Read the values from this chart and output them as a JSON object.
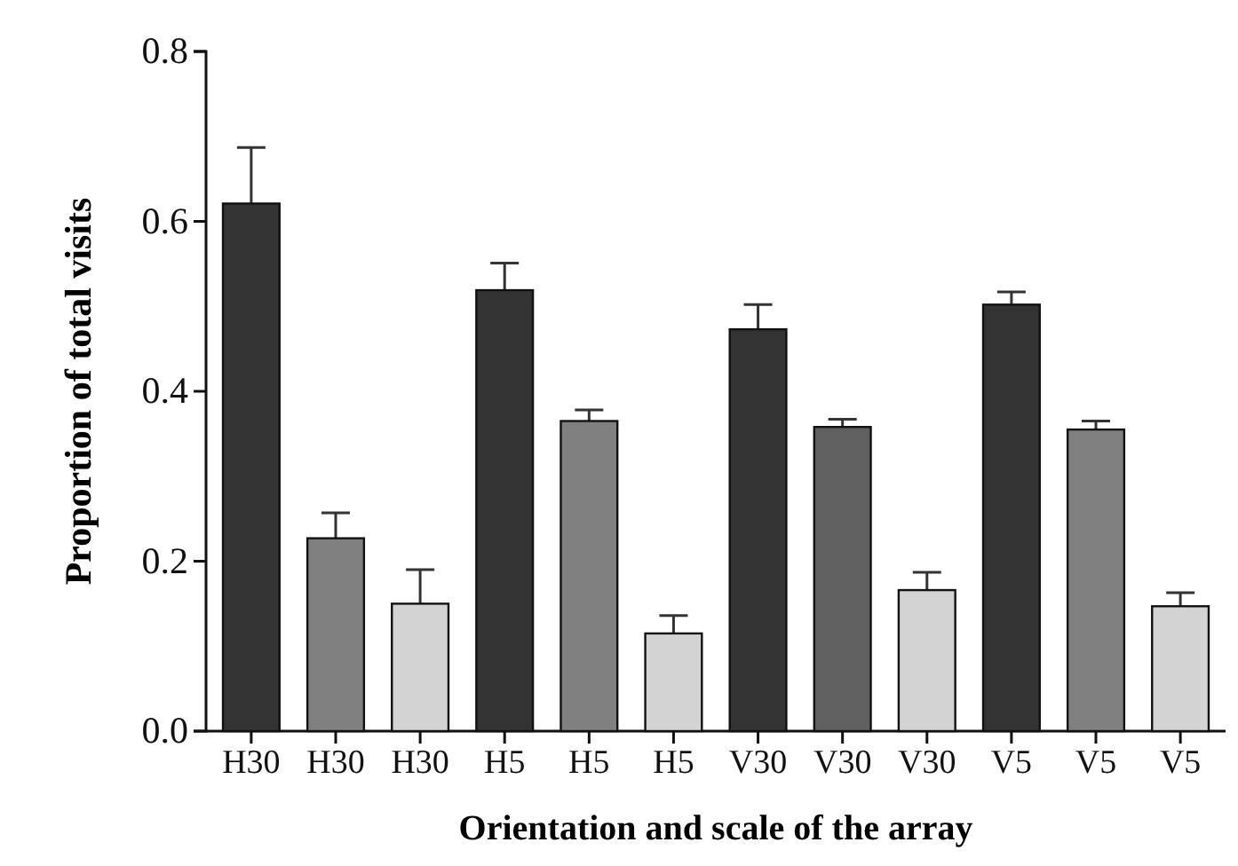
{
  "chart_data": {
    "type": "bar",
    "xlabel": "Orientation and scale of the array",
    "ylabel": "Proportion of total visits",
    "categories": [
      "H30",
      "H30",
      "H30",
      "H5",
      "H5",
      "H5",
      "V30",
      "V30",
      "V30",
      "V5",
      "V5",
      "V5"
    ],
    "values": [
      0.621,
      0.227,
      0.15,
      0.519,
      0.365,
      0.115,
      0.473,
      0.358,
      0.166,
      0.502,
      0.355,
      0.147
    ],
    "errors": [
      0.066,
      0.03,
      0.04,
      0.032,
      0.013,
      0.021,
      0.029,
      0.009,
      0.021,
      0.015,
      0.01,
      0.016
    ],
    "colors": [
      "#333333",
      "#808080",
      "#d3d3d3",
      "#333333",
      "#808080",
      "#d3d3d3",
      "#333333",
      "#606060",
      "#d3d3d3",
      "#333333",
      "#808080",
      "#d3d3d3"
    ],
    "ylim": [
      0,
      0.8
    ],
    "yticks": [
      {
        "value": 0,
        "label": "0.0"
      },
      0.2,
      0.4,
      0.6,
      0.8
    ],
    "grid": false
  }
}
